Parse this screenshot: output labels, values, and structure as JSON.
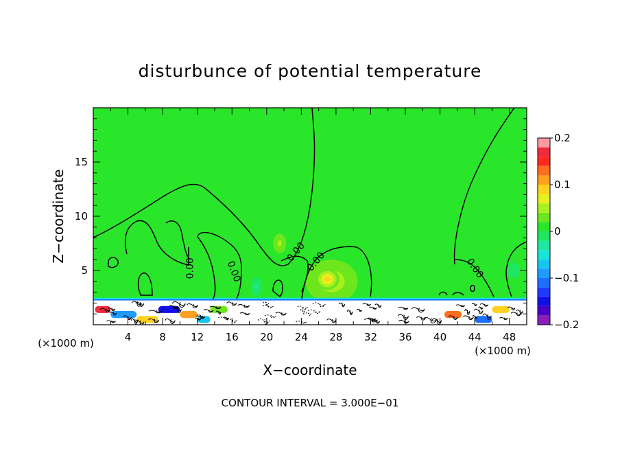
{
  "chart_data": {
    "type": "heatmap",
    "title": "disturbunce of potential temperature",
    "xlabel": "X−coordinate",
    "ylabel": "Z−coordinate",
    "x_unit_left": "(×1000 m)",
    "x_unit_right": "(×1000 m)",
    "xlim": [
      0,
      50
    ],
    "ylim": [
      0,
      20
    ],
    "x_ticks": [
      4,
      8,
      12,
      16,
      20,
      24,
      28,
      32,
      36,
      40,
      44,
      48
    ],
    "x_tick_labels": [
      "4",
      "8",
      "12",
      "16",
      "20",
      "24",
      "28",
      "32",
      "36",
      "40",
      "44",
      "48"
    ],
    "y_ticks": [
      5,
      10,
      15
    ],
    "y_tick_labels": [
      "5",
      "10",
      "15"
    ],
    "footer": "CONTOUR INTERVAL = 3.000E−01",
    "contour_labels": [
      {
        "text": "0.00",
        "x": 11.2,
        "z": 5.2,
        "angle": -90
      },
      {
        "text": "0.00",
        "x": 16.2,
        "z": 4.9,
        "angle": 70
      },
      {
        "text": "0.00",
        "x": 23.4,
        "z": 6.7,
        "angle": -50
      },
      {
        "text": "0.00",
        "x": 25.7,
        "z": 5.8,
        "angle": -50
      },
      {
        "text": "0.00",
        "x": 44.0,
        "z": 5.2,
        "angle": 55
      }
    ],
    "colorbar": {
      "min": -0.2,
      "max": 0.2,
      "tick_values": [
        0.2,
        0.1,
        0,
        -0.1,
        -0.2
      ],
      "tick_labels": [
        "0.2",
        "0.1",
        "0",
        "−0.1",
        "−0.2"
      ],
      "levels": [
        {
          "lo": -0.2,
          "hi": -0.18,
          "color": "#8a1fb8"
        },
        {
          "lo": -0.18,
          "hi": -0.16,
          "color": "#4b00c8"
        },
        {
          "lo": -0.16,
          "hi": -0.14,
          "color": "#1010e6"
        },
        {
          "lo": -0.14,
          "hi": -0.12,
          "color": "#1e3cff"
        },
        {
          "lo": -0.12,
          "hi": -0.1,
          "color": "#1f6fff"
        },
        {
          "lo": -0.1,
          "hi": -0.08,
          "color": "#1f9cff"
        },
        {
          "lo": -0.08,
          "hi": -0.06,
          "color": "#18c4f0"
        },
        {
          "lo": -0.06,
          "hi": -0.04,
          "color": "#16e6d8"
        },
        {
          "lo": -0.04,
          "hi": -0.02,
          "color": "#1fe6a0"
        },
        {
          "lo": -0.02,
          "hi": 0.0,
          "color": "#1ee660"
        },
        {
          "lo": 0.0,
          "hi": 0.02,
          "color": "#2ae62a"
        },
        {
          "lo": 0.02,
          "hi": 0.04,
          "color": "#6ee61e"
        },
        {
          "lo": 0.04,
          "hi": 0.06,
          "color": "#a8f01e"
        },
        {
          "lo": 0.06,
          "hi": 0.08,
          "color": "#e6f01e"
        },
        {
          "lo": 0.08,
          "hi": 0.1,
          "color": "#ffd21e"
        },
        {
          "lo": 0.1,
          "hi": 0.12,
          "color": "#ffa01e"
        },
        {
          "lo": 0.12,
          "hi": 0.14,
          "color": "#ff6e1e"
        },
        {
          "lo": 0.14,
          "hi": 0.16,
          "color": "#ff2a1e"
        },
        {
          "lo": 0.16,
          "hi": 0.18,
          "color": "#f02a3c"
        },
        {
          "lo": 0.18,
          "hi": 0.2,
          "color": "#ff9aa0"
        }
      ]
    },
    "field": {
      "background_value": 0.01,
      "blobs": [
        {
          "x": 27.5,
          "z": 4.0,
          "rx": 3.0,
          "rz": 2.0,
          "value": 0.06
        },
        {
          "x": 27.0,
          "z": 4.2,
          "rx": 1.4,
          "rz": 1.0,
          "value": 0.08
        },
        {
          "x": 21.5,
          "z": 7.5,
          "rx": 1.0,
          "rz": 1.2,
          "value": 0.04
        },
        {
          "x": 18.8,
          "z": 3.5,
          "rx": 0.8,
          "rz": 1.2,
          "value": -0.03
        },
        {
          "x": 48.5,
          "z": 5.0,
          "rx": 1.0,
          "rz": 1.0,
          "value": -0.02
        }
      ]
    },
    "boundary_layer": {
      "top_z": 2.3,
      "band_color_values": [
        -0.12,
        -0.06
      ],
      "segments": [
        {
          "x0": 0.2,
          "x1": 2.0,
          "value": 0.16
        },
        {
          "x0": 2.0,
          "x1": 5.0,
          "value": -0.1
        },
        {
          "x0": 5.0,
          "x1": 7.5,
          "value": 0.08
        },
        {
          "x0": 7.5,
          "x1": 10.0,
          "value": -0.15
        },
        {
          "x0": 10.0,
          "x1": 12.0,
          "value": 0.1
        },
        {
          "x0": 12.0,
          "x1": 13.5,
          "value": -0.08
        },
        {
          "x0": 13.5,
          "x1": 15.5,
          "value": 0.03
        },
        {
          "x0": 40.5,
          "x1": 42.5,
          "value": 0.13
        },
        {
          "x0": 44.0,
          "x1": 46.0,
          "value": -0.12
        },
        {
          "x0": 46.0,
          "x1": 48.0,
          "value": 0.09
        }
      ]
    }
  }
}
